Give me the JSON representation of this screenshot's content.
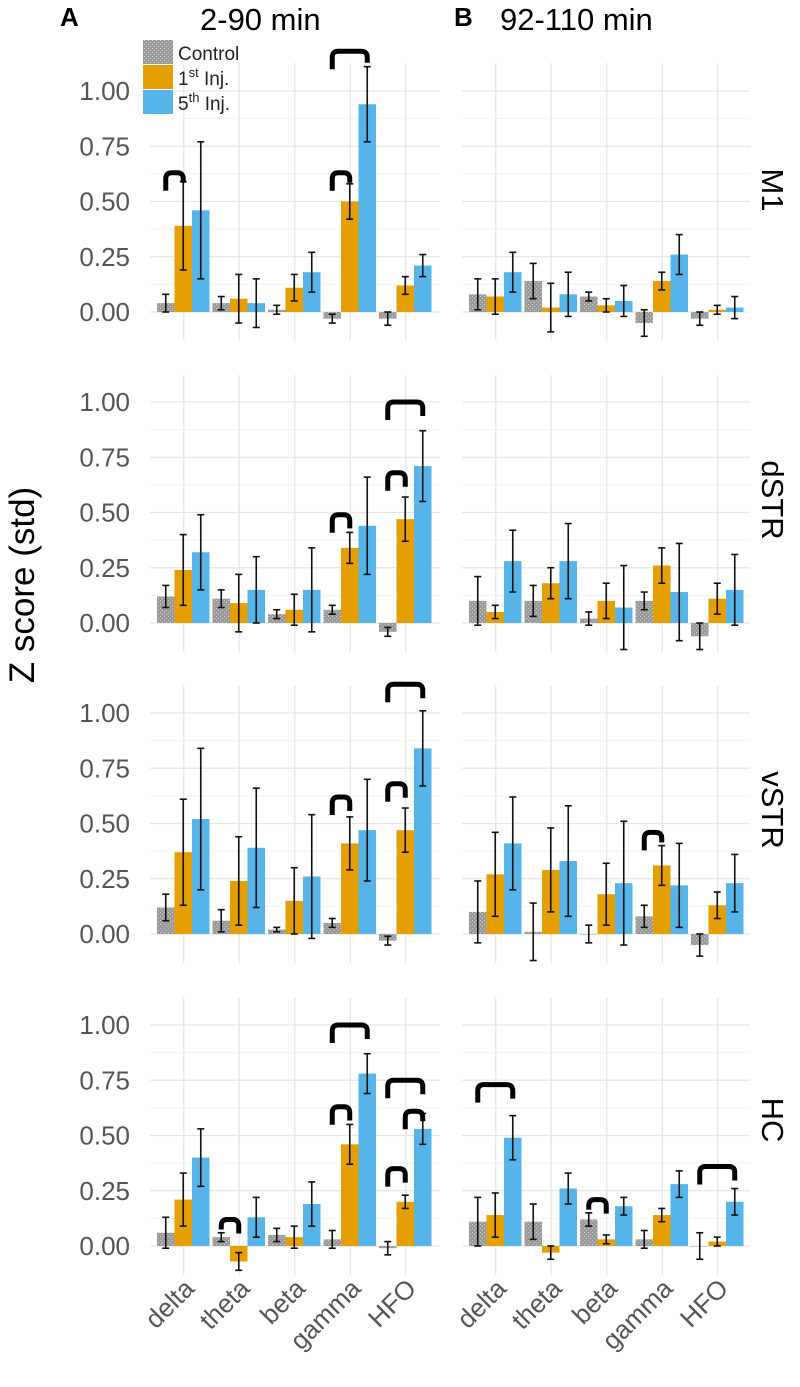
{
  "chart_data": {
    "type": "bar",
    "ylabel": "Z score (std)",
    "ylim": [
      -0.1,
      1.1
    ],
    "y_ticks": [
      "0.00",
      "0.25",
      "0.50",
      "0.75",
      "1.00"
    ],
    "categories": [
      "delta",
      "theta",
      "beta",
      "gamma",
      "HFO"
    ],
    "series_names": [
      "Control",
      "1st Inj.",
      "5th Inj."
    ],
    "legend": {
      "position": "top-left",
      "items": [
        {
          "base": "Control",
          "sup": "",
          "rest": "",
          "color": "#9b9b9b",
          "hatched": true
        },
        {
          "base": "1",
          "sup": "st",
          "rest": " Inj.",
          "color": "#e69f00",
          "hatched": false
        },
        {
          "base": "5",
          "sup": "th",
          "rest": " Inj.",
          "color": "#56b4e9",
          "hatched": false
        }
      ]
    },
    "colors": {
      "control": "#9b9b9b",
      "inj1": "#e69f00",
      "inj5": "#56b4e9"
    },
    "columns": [
      {
        "letter": "A",
        "title": "2-90 min"
      },
      {
        "letter": "B",
        "title": "92-110 min"
      }
    ],
    "rows": [
      "M1",
      "dSTR",
      "vSTR",
      "HC"
    ],
    "panels": [
      {
        "row": 0,
        "col": 0,
        "label": "M1 2-90 min",
        "series": [
          {
            "name": "Control",
            "values": [
              0.04,
              0.04,
              0.01,
              -0.03,
              -0.03
            ],
            "err": [
              0.04,
              0.03,
              0.02,
              0.02,
              0.03
            ]
          },
          {
            "name": "1st Inj.",
            "values": [
              0.39,
              0.06,
              0.11,
              0.5,
              0.12
            ],
            "err": [
              0.2,
              0.11,
              0.06,
              0.08,
              0.04
            ]
          },
          {
            "name": "5th Inj.",
            "values": [
              0.46,
              0.04,
              0.18,
              0.94,
              0.21
            ],
            "err": [
              0.31,
              0.11,
              0.09,
              0.17,
              0.05
            ]
          }
        ],
        "brackets": [
          {
            "cat": 0,
            "from": 0,
            "to": 1,
            "y": 0.63
          },
          {
            "cat": 3,
            "from": 0,
            "to": 1,
            "y": 0.63
          },
          {
            "cat": 3,
            "from": 0,
            "to": 2,
            "y": 1.18
          }
        ]
      },
      {
        "row": 0,
        "col": 1,
        "label": "M1 92-110 min",
        "series": [
          {
            "name": "Control",
            "values": [
              0.08,
              0.14,
              0.07,
              -0.05,
              -0.03
            ],
            "err": [
              0.07,
              0.08,
              0.02,
              0.06,
              0.03
            ]
          },
          {
            "name": "1st Inj.",
            "values": [
              0.07,
              0.02,
              0.03,
              0.14,
              0.01
            ],
            "err": [
              0.08,
              0.11,
              0.03,
              0.04,
              0.02
            ]
          },
          {
            "name": "5th Inj.",
            "values": [
              0.18,
              0.08,
              0.05,
              0.26,
              0.02
            ],
            "err": [
              0.09,
              0.1,
              0.07,
              0.09,
              0.05
            ]
          }
        ],
        "brackets": []
      },
      {
        "row": 1,
        "col": 0,
        "label": "dSTR 2-90 min",
        "series": [
          {
            "name": "Control",
            "values": [
              0.12,
              0.11,
              0.04,
              0.06,
              -0.04
            ],
            "err": [
              0.05,
              0.04,
              0.02,
              0.02,
              0.02
            ]
          },
          {
            "name": "1st Inj.",
            "values": [
              0.24,
              0.09,
              0.06,
              0.34,
              0.47
            ],
            "err": [
              0.16,
              0.13,
              0.07,
              0.07,
              0.1
            ]
          },
          {
            "name": "5th Inj.",
            "values": [
              0.32,
              0.15,
              0.15,
              0.44,
              0.71
            ],
            "err": [
              0.17,
              0.15,
              0.19,
              0.22,
              0.16
            ]
          }
        ],
        "brackets": [
          {
            "cat": 3,
            "from": 0,
            "to": 1,
            "y": 0.49
          },
          {
            "cat": 4,
            "from": 0,
            "to": 1,
            "y": 0.68
          },
          {
            "cat": 4,
            "from": 0,
            "to": 2,
            "y": 1.0
          }
        ]
      },
      {
        "row": 1,
        "col": 1,
        "label": "dSTR 92-110 min",
        "series": [
          {
            "name": "Control",
            "values": [
              0.1,
              0.1,
              0.02,
              0.1,
              -0.06
            ],
            "err": [
              0.11,
              0.07,
              0.03,
              0.04,
              0.06
            ]
          },
          {
            "name": "1st Inj.",
            "values": [
              0.05,
              0.18,
              0.1,
              0.26,
              0.11
            ],
            "err": [
              0.03,
              0.07,
              0.08,
              0.08,
              0.07
            ]
          },
          {
            "name": "5th Inj.",
            "values": [
              0.28,
              0.28,
              0.07,
              0.14,
              0.15
            ],
            "err": [
              0.14,
              0.17,
              0.19,
              0.22,
              0.16
            ]
          }
        ],
        "brackets": []
      },
      {
        "row": 2,
        "col": 0,
        "label": "vSTR 2-90 min",
        "series": [
          {
            "name": "Control",
            "values": [
              0.12,
              0.06,
              0.02,
              0.05,
              -0.03
            ],
            "err": [
              0.06,
              0.05,
              0.01,
              0.02,
              0.02
            ]
          },
          {
            "name": "1st Inj.",
            "values": [
              0.37,
              0.24,
              0.15,
              0.41,
              0.47
            ],
            "err": [
              0.24,
              0.2,
              0.15,
              0.12,
              0.1
            ]
          },
          {
            "name": "5th Inj.",
            "values": [
              0.52,
              0.39,
              0.26,
              0.47,
              0.84
            ],
            "err": [
              0.32,
              0.27,
              0.28,
              0.23,
              0.17
            ]
          }
        ],
        "brackets": [
          {
            "cat": 3,
            "from": 0,
            "to": 1,
            "y": 0.62
          },
          {
            "cat": 4,
            "from": 0,
            "to": 1,
            "y": 0.68
          },
          {
            "cat": 4,
            "from": 0,
            "to": 2,
            "y": 1.13
          }
        ]
      },
      {
        "row": 2,
        "col": 1,
        "label": "vSTR 92-110 min",
        "series": [
          {
            "name": "Control",
            "values": [
              0.1,
              0.01,
              0.0,
              0.08,
              -0.05
            ],
            "err": [
              0.14,
              0.13,
              0.04,
              0.05,
              0.05
            ]
          },
          {
            "name": "1st Inj.",
            "values": [
              0.27,
              0.29,
              0.18,
              0.31,
              0.13
            ],
            "err": [
              0.19,
              0.19,
              0.14,
              0.09,
              0.06
            ]
          },
          {
            "name": "5th Inj.",
            "values": [
              0.41,
              0.33,
              0.23,
              0.22,
              0.23
            ],
            "err": [
              0.21,
              0.25,
              0.28,
              0.19,
              0.13
            ]
          }
        ],
        "brackets": [
          {
            "cat": 3,
            "from": 0,
            "to": 1,
            "y": 0.46
          }
        ]
      },
      {
        "row": 3,
        "col": 0,
        "label": "HC 2-90 min",
        "series": [
          {
            "name": "Control",
            "values": [
              0.06,
              0.04,
              0.05,
              0.03,
              -0.01
            ],
            "err": [
              0.07,
              0.02,
              0.03,
              0.04,
              0.03
            ]
          },
          {
            "name": "1st Inj.",
            "values": [
              0.21,
              -0.07,
              0.04,
              0.46,
              0.2
            ],
            "err": [
              0.12,
              0.04,
              0.05,
              0.09,
              0.03
            ]
          },
          {
            "name": "5th Inj.",
            "values": [
              0.4,
              0.13,
              0.19,
              0.78,
              0.53
            ],
            "err": [
              0.13,
              0.09,
              0.1,
              0.09,
              0.07
            ]
          }
        ],
        "brackets": [
          {
            "cat": 1,
            "from": 0,
            "to": 1,
            "y": 0.12
          },
          {
            "cat": 3,
            "from": 0,
            "to": 1,
            "y": 0.63
          },
          {
            "cat": 3,
            "from": 0,
            "to": 2,
            "y": 1.0
          },
          {
            "cat": 4,
            "from": 0,
            "to": 1,
            "y": 0.35
          },
          {
            "cat": 4,
            "from": 1,
            "to": 2,
            "y": 0.61
          },
          {
            "cat": 4,
            "from": 0,
            "to": 2,
            "y": 0.75
          }
        ]
      },
      {
        "row": 3,
        "col": 1,
        "label": "HC 92-110 min",
        "series": [
          {
            "name": "Control",
            "values": [
              0.11,
              0.11,
              0.12,
              0.03,
              0.0
            ],
            "err": [
              0.11,
              0.08,
              0.03,
              0.04,
              0.06
            ]
          },
          {
            "name": "1st Inj.",
            "values": [
              0.14,
              -0.03,
              0.03,
              0.14,
              0.02
            ],
            "err": [
              0.1,
              0.03,
              0.02,
              0.03,
              0.02
            ]
          },
          {
            "name": "5th Inj.",
            "values": [
              0.49,
              0.26,
              0.18,
              0.28,
              0.2
            ],
            "err": [
              0.1,
              0.07,
              0.04,
              0.06,
              0.06
            ]
          }
        ],
        "brackets": [
          {
            "cat": 0,
            "from": 0,
            "to": 2,
            "y": 0.73
          },
          {
            "cat": 2,
            "from": 0,
            "to": 1,
            "y": 0.21
          },
          {
            "cat": 4,
            "from": 0,
            "to": 2,
            "y": 0.36
          }
        ]
      }
    ]
  }
}
